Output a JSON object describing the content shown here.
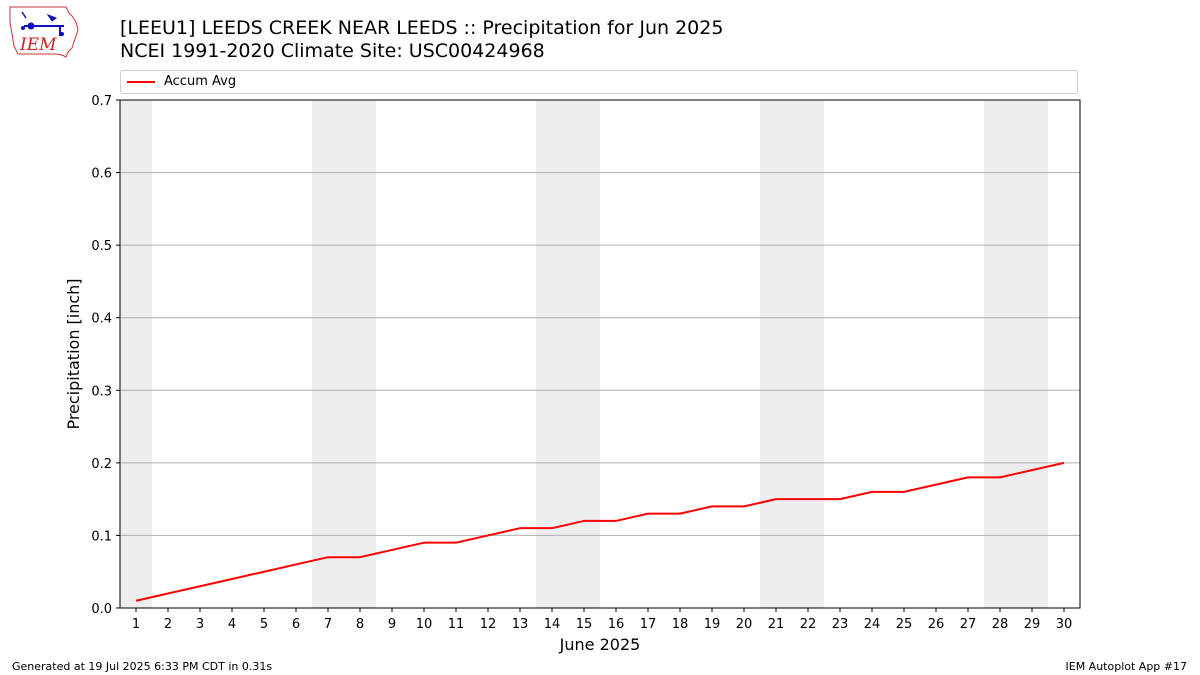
{
  "header": {
    "title_line1": "[LEEU1] LEEDS CREEK NEAR LEEDS :: Precipitation for Jun 2025",
    "title_line2": "NCEI 1991-2020 Climate Site: USC00424968"
  },
  "logo": {
    "text": "IEM",
    "icon": "iem-iowa-logo"
  },
  "footer": {
    "left": "Generated at 19 Jul 2025 6:33 PM CDT in 0.31s",
    "right": "IEM Autoplot App #17"
  },
  "colors": {
    "line": "#ff0000",
    "weekend_band": "#eeeeee",
    "grid": "#b0b0b0"
  },
  "chart_data": {
    "type": "line",
    "xlabel": "June 2025",
    "ylabel": "Precipitation [inch]",
    "ylim": [
      0,
      0.7
    ],
    "yticks": [
      "0.0",
      "0.1",
      "0.2",
      "0.3",
      "0.4",
      "0.5",
      "0.6",
      "0.7"
    ],
    "grid": "horizontal",
    "legend": "top",
    "x": [
      1,
      2,
      3,
      4,
      5,
      6,
      7,
      8,
      9,
      10,
      11,
      12,
      13,
      14,
      15,
      16,
      17,
      18,
      19,
      20,
      21,
      22,
      23,
      24,
      25,
      26,
      27,
      28,
      29,
      30
    ],
    "xticks": [
      "1",
      "2",
      "3",
      "4",
      "5",
      "6",
      "7",
      "8",
      "9",
      "10",
      "11",
      "12",
      "13",
      "14",
      "15",
      "16",
      "17",
      "18",
      "19",
      "20",
      "21",
      "22",
      "23",
      "24",
      "25",
      "26",
      "27",
      "28",
      "29",
      "30"
    ],
    "weekend_days": [
      1,
      7,
      8,
      14,
      15,
      21,
      22,
      28,
      29
    ],
    "series": [
      {
        "name": "Accum Avg",
        "color": "#ff0000",
        "values": [
          0.01,
          0.02,
          0.03,
          0.04,
          0.05,
          0.06,
          0.07,
          0.07,
          0.08,
          0.09,
          0.09,
          0.1,
          0.11,
          0.11,
          0.12,
          0.12,
          0.13,
          0.13,
          0.14,
          0.14,
          0.15,
          0.15,
          0.15,
          0.16,
          0.16,
          0.17,
          0.18,
          0.18,
          0.19,
          0.2
        ]
      }
    ]
  }
}
